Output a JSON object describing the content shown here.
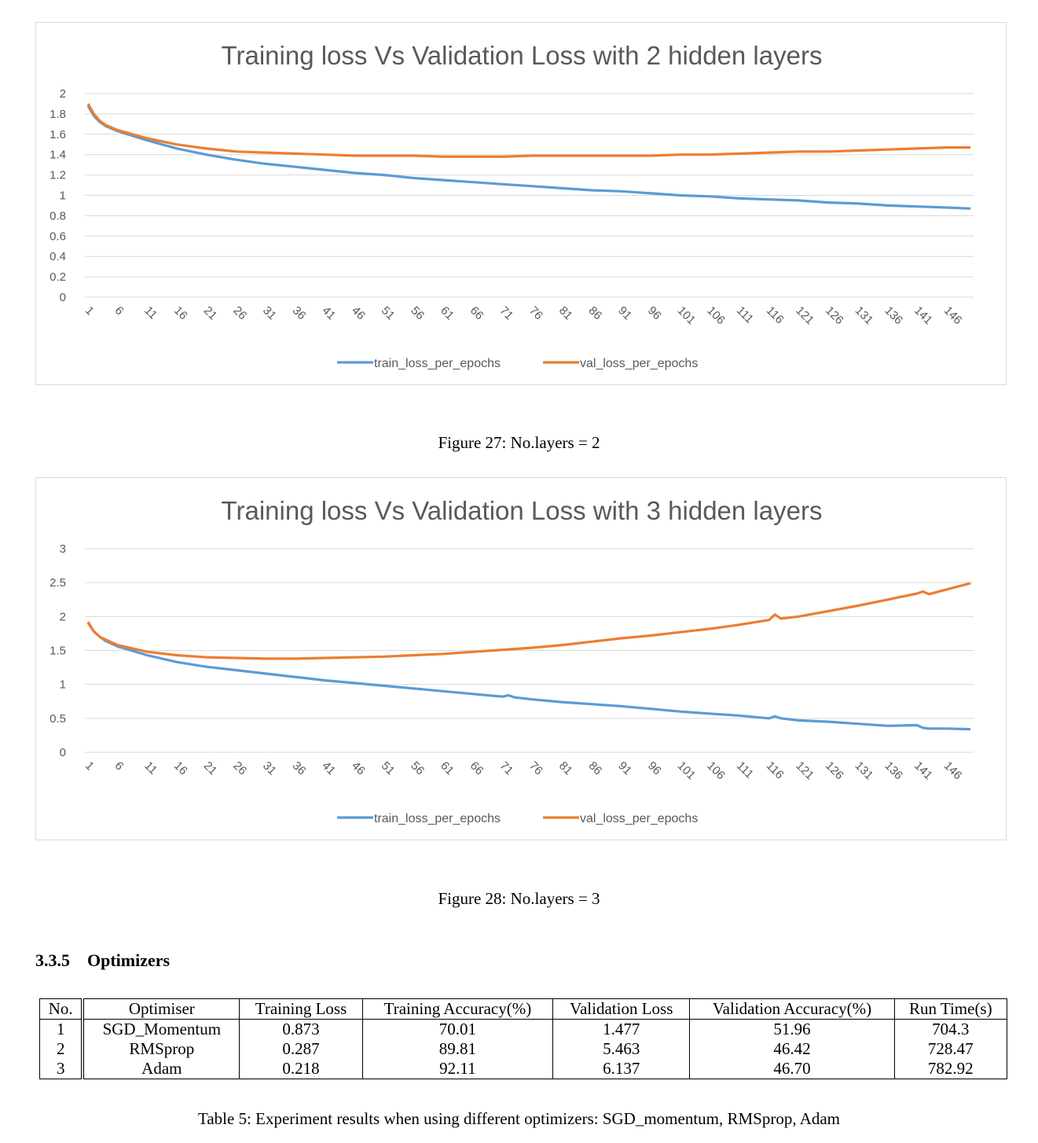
{
  "figures": [
    {
      "caption": "Figure 27: No.layers = 2",
      "chart_data": {
        "type": "line",
        "title": "Training loss Vs Validation Loss with 2 hidden layers",
        "xlabel": "",
        "ylabel": "",
        "ylim": [
          0,
          2
        ],
        "yticks": [
          "0",
          "0.2",
          "0.4",
          "0.6",
          "0.8",
          "1",
          "1.2",
          "1.4",
          "1.6",
          "1.8",
          "2"
        ],
        "xticks": [
          "1",
          "6",
          "11",
          "16",
          "21",
          "26",
          "31",
          "36",
          "41",
          "46",
          "51",
          "56",
          "61",
          "66",
          "71",
          "76",
          "81",
          "86",
          "91",
          "96",
          "101",
          "106",
          "111",
          "116",
          "121",
          "126",
          "131",
          "136",
          "141",
          "146"
        ],
        "x_range": [
          1,
          150
        ],
        "grid": "horizontal",
        "legend": "bottom",
        "series": [
          {
            "name": "train_loss_per_epochs",
            "color": "#5b9bd5",
            "x": [
              1,
              2,
              3,
              4,
              6,
              11,
              16,
              21,
              26,
              31,
              36,
              41,
              46,
              51,
              56,
              61,
              66,
              71,
              76,
              81,
              86,
              91,
              96,
              101,
              106,
              111,
              116,
              121,
              126,
              131,
              136,
              141,
              146,
              150
            ],
            "values": [
              1.88,
              1.78,
              1.72,
              1.68,
              1.63,
              1.54,
              1.46,
              1.4,
              1.35,
              1.31,
              1.28,
              1.25,
              1.22,
              1.2,
              1.17,
              1.15,
              1.13,
              1.11,
              1.09,
              1.07,
              1.05,
              1.04,
              1.02,
              1.0,
              0.99,
              0.97,
              0.96,
              0.95,
              0.93,
              0.92,
              0.9,
              0.89,
              0.88,
              0.87
            ]
          },
          {
            "name": "val_loss_per_epochs",
            "color": "#ed7d31",
            "x": [
              1,
              2,
              3,
              4,
              6,
              11,
              16,
              21,
              26,
              31,
              36,
              41,
              46,
              51,
              56,
              61,
              66,
              71,
              76,
              81,
              86,
              91,
              96,
              101,
              106,
              111,
              116,
              121,
              126,
              131,
              136,
              141,
              146,
              150
            ],
            "values": [
              1.9,
              1.8,
              1.73,
              1.69,
              1.64,
              1.56,
              1.5,
              1.46,
              1.43,
              1.42,
              1.41,
              1.4,
              1.39,
              1.39,
              1.39,
              1.38,
              1.38,
              1.38,
              1.39,
              1.39,
              1.39,
              1.39,
              1.39,
              1.4,
              1.4,
              1.41,
              1.42,
              1.43,
              1.43,
              1.44,
              1.45,
              1.46,
              1.47,
              1.47
            ]
          }
        ]
      }
    },
    {
      "caption": "Figure 28: No.layers = 3",
      "chart_data": {
        "type": "line",
        "title": "Training loss Vs Validation Loss with 3 hidden layers",
        "xlabel": "",
        "ylabel": "",
        "ylim": [
          0,
          3
        ],
        "yticks": [
          "0",
          "0.5",
          "1",
          "1.5",
          "2",
          "2.5",
          "3"
        ],
        "xticks": [
          "1",
          "6",
          "11",
          "16",
          "21",
          "26",
          "31",
          "36",
          "41",
          "46",
          "51",
          "56",
          "61",
          "66",
          "71",
          "76",
          "81",
          "86",
          "91",
          "96",
          "101",
          "106",
          "111",
          "116",
          "121",
          "126",
          "131",
          "136",
          "141",
          "146"
        ],
        "x_range": [
          1,
          150
        ],
        "grid": "horizontal",
        "legend": "bottom",
        "series": [
          {
            "name": "train_loss_per_epochs",
            "color": "#5b9bd5",
            "x": [
              1,
              2,
              3,
              4,
              6,
              11,
              16,
              21,
              26,
              31,
              36,
              41,
              46,
              51,
              56,
              61,
              66,
              71,
              72,
              73,
              76,
              81,
              86,
              91,
              96,
              101,
              106,
              111,
              116,
              117,
              118,
              121,
              126,
              131,
              136,
              141,
              142,
              143,
              146,
              150
            ],
            "values": [
              1.91,
              1.78,
              1.7,
              1.64,
              1.56,
              1.43,
              1.33,
              1.26,
              1.21,
              1.16,
              1.11,
              1.06,
              1.02,
              0.98,
              0.94,
              0.9,
              0.86,
              0.82,
              0.84,
              0.81,
              0.78,
              0.74,
              0.71,
              0.68,
              0.64,
              0.6,
              0.57,
              0.54,
              0.5,
              0.53,
              0.5,
              0.47,
              0.45,
              0.42,
              0.39,
              0.4,
              0.36,
              0.35,
              0.35,
              0.34
            ]
          },
          {
            "name": "val_loss_per_epochs",
            "color": "#ed7d31",
            "x": [
              1,
              2,
              3,
              4,
              6,
              11,
              16,
              21,
              26,
              31,
              36,
              41,
              46,
              51,
              56,
              61,
              66,
              71,
              76,
              81,
              86,
              91,
              96,
              101,
              106,
              111,
              116,
              117,
              118,
              121,
              126,
              131,
              136,
              141,
              142,
              143,
              146,
              150
            ],
            "values": [
              1.92,
              1.78,
              1.7,
              1.66,
              1.58,
              1.48,
              1.43,
              1.4,
              1.39,
              1.38,
              1.38,
              1.39,
              1.4,
              1.41,
              1.43,
              1.45,
              1.48,
              1.51,
              1.54,
              1.58,
              1.63,
              1.68,
              1.72,
              1.77,
              1.82,
              1.88,
              1.95,
              2.03,
              1.97,
              2.0,
              2.08,
              2.16,
              2.25,
              2.34,
              2.37,
              2.33,
              2.4,
              2.49
            ]
          }
        ]
      }
    }
  ],
  "section": {
    "number": "3.3.5",
    "title": "Optimizers"
  },
  "table": {
    "headers": [
      "No.",
      "Optimiser",
      "Training Loss",
      "Training Accuracy(%)",
      "Validation Loss",
      "Validation Accuracy(%)",
      "Run Time(s)"
    ],
    "rows": [
      [
        "1",
        "SGD_Momentum",
        "0.873",
        "70.01",
        "1.477",
        "51.96",
        "704.3"
      ],
      [
        "2",
        "RMSprop",
        "0.287",
        "89.81",
        "5.463",
        "46.42",
        "728.47"
      ],
      [
        "3",
        "Adam",
        "0.218",
        "92.11",
        "6.137",
        "46.70",
        "782.92"
      ]
    ],
    "caption": "Table 5: Experiment results when using different optimizers: SGD_momentum, RMSprop, Adam"
  }
}
